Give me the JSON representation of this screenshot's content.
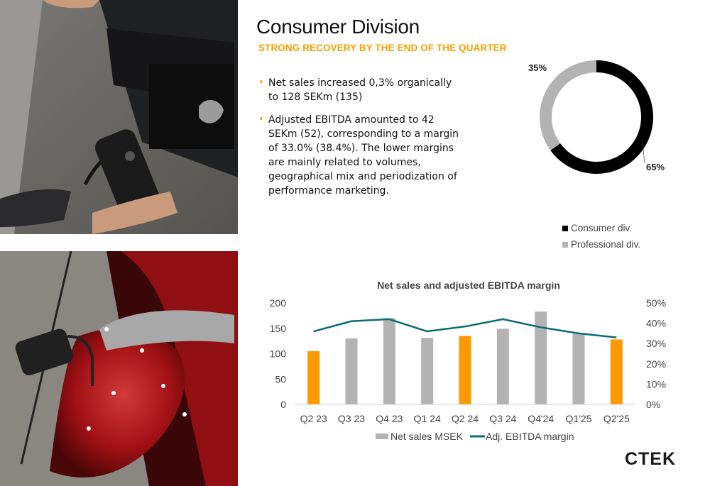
{
  "page": {
    "title": "Consumer Division",
    "subtitle": "STRONG RECOVERY BY THE END OF THE QUARTER",
    "bullets": [
      "Net sales increased 0,3% organically to 128 SEKm (135)",
      "Adjusted EBITDA amounted to 42 SEKm (52), corresponding to a margin of 33.0% (38.4%). The lower margins are mainly related to volumes, geographical mix and periodization of performance marketing."
    ],
    "logo_text": "CTEK",
    "accent_color": "#f5a000"
  },
  "chart_data": [
    {
      "type": "pie",
      "style": "donut",
      "labels": [
        "Consumer div.",
        "Professional div."
      ],
      "values": [
        65,
        35
      ],
      "value_labels": [
        "65%",
        "35%"
      ],
      "colors": [
        "#000000",
        "#b3b3b3"
      ],
      "legend": {
        "placement": "bottom-right",
        "entries": [
          "Consumer div.",
          "Professional div."
        ]
      }
    },
    {
      "type": "bar",
      "title": "Net sales and adjusted EBITDA margin",
      "categories": [
        "Q2 23",
        "Q3 23",
        "Q4 23",
        "Q1 24",
        "Q2 24",
        "Q3 24",
        "Q4'24",
        "Q1'25",
        "Q2'25"
      ],
      "series": [
        {
          "name": "Net sales MSEK",
          "kind": "bar",
          "axis": "left",
          "values": [
            105,
            130,
            170,
            131,
            135,
            149,
            183,
            139,
            128
          ],
          "colors": [
            "#ff9900",
            "#b3b3b3",
            "#b3b3b3",
            "#b3b3b3",
            "#ff9900",
            "#b3b3b3",
            "#b3b3b3",
            "#b3b3b3",
            "#ff9900"
          ]
        },
        {
          "name": "Adj. EBITDA margin",
          "kind": "line",
          "axis": "right",
          "values": [
            36.0,
            41.0,
            42.0,
            36.0,
            38.4,
            42.0,
            38.0,
            35.0,
            33.0
          ],
          "color": "#0b6b72"
        }
      ],
      "y_left": {
        "ylim": [
          0,
          200
        ],
        "ticks": [
          "0",
          "50",
          "100",
          "150",
          "200"
        ]
      },
      "y_right": {
        "ylim": [
          0,
          50
        ],
        "ticks": [
          "0%",
          "10%",
          "20%",
          "30%",
          "40%",
          "50%"
        ]
      },
      "grid": false,
      "legend": {
        "placement": "bottom",
        "entries": [
          "Net sales MSEK",
          "Adj. EBITDA margin"
        ]
      }
    }
  ]
}
